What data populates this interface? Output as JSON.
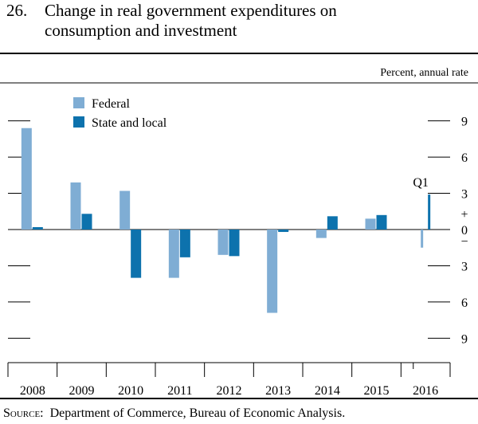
{
  "figure": {
    "number": "26.",
    "title_line1": "Change in real government expenditures on",
    "title_line2": "consumption and investment",
    "units": "Percent, annual rate",
    "source_label": "Source:",
    "source_text": "Department of Commerce, Bureau of Economic Analysis."
  },
  "colors": {
    "federal": "#7fadd4",
    "state_local": "#0d72ad"
  },
  "chart_data": {
    "type": "bar",
    "categories": [
      "2008",
      "2009",
      "2010",
      "2011",
      "2012",
      "2013",
      "2014",
      "2015",
      "2016"
    ],
    "series": [
      {
        "name": "Federal",
        "values": [
          8.4,
          3.9,
          3.2,
          -4.0,
          -2.1,
          -6.9,
          -0.7,
          0.9,
          -1.5
        ]
      },
      {
        "name": "State and local",
        "values": [
          0.2,
          1.3,
          -4.0,
          -2.3,
          -2.2,
          -0.2,
          1.1,
          1.2,
          2.9
        ]
      }
    ],
    "ylim": [
      -11,
      9.5
    ],
    "yticks": [
      -9,
      -6,
      -3,
      0,
      3,
      6,
      9
    ],
    "ytick_labels": [
      "9",
      "6",
      "3",
      "0",
      "3",
      "6",
      "9"
    ],
    "plus_sign": "+",
    "minus_sign": "−",
    "annotation": {
      "text": "Q1",
      "category": "2016"
    },
    "legend": "top-left"
  }
}
